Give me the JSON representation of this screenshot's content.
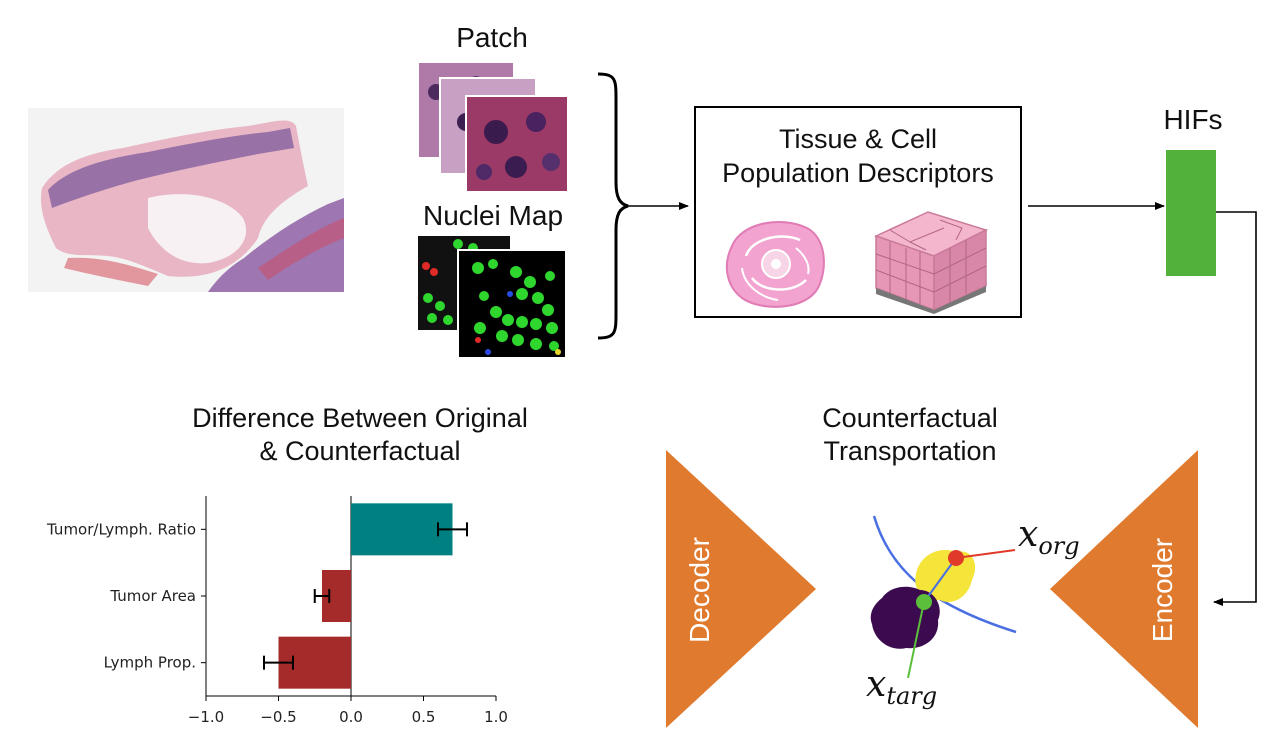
{
  "top": {
    "patch_label": "Patch",
    "nuclei_label": "Nuclei Map",
    "descriptor_title_line1": "Tissue & Cell",
    "descriptor_title_line2": "Population Descriptors",
    "hifs_label": "HIFs"
  },
  "bottom": {
    "bar_title_line1": "Difference Between Original",
    "bar_title_line2": "& Counterfactual",
    "transport_title_line1": "Counterfactual",
    "transport_title_line2": "Transportation",
    "decoder_label": "Decoder",
    "encoder_label": "Encoder",
    "x_org_base": "x",
    "x_org_sub": "org",
    "x_targ_base": "x",
    "x_targ_sub": "targ"
  },
  "colors": {
    "teal": "#008080",
    "red": "#a52a2a",
    "hif_green": "#52b13b",
    "orange": "#e07a2e",
    "yellow_cluster": "#f5e43a",
    "purple_cluster": "#3b0a4f",
    "curve_blue": "#4a6fe3"
  },
  "chart_data": {
    "type": "bar",
    "orientation": "horizontal",
    "categories": [
      "Tumor/Lymph. Ratio",
      "Tumor Area",
      "Lymph Prop."
    ],
    "values": [
      0.7,
      -0.2,
      -0.5
    ],
    "errors": [
      0.1,
      0.05,
      0.1
    ],
    "colors": [
      "#008080",
      "#a52a2a",
      "#a52a2a"
    ],
    "xlim": [
      -1.0,
      1.0
    ],
    "xticks": [
      "−1.0",
      "−0.5",
      "0.0",
      "0.5",
      "1.0"
    ],
    "xtick_values": [
      -1.0,
      -0.5,
      0.0,
      0.5,
      1.0
    ]
  }
}
